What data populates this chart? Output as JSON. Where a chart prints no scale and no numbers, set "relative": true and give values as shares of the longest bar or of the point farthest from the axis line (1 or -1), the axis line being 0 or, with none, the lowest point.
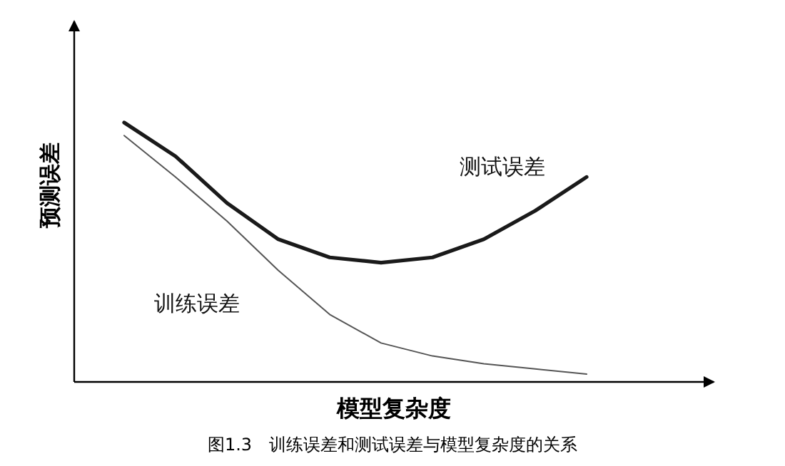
{
  "chart_data": {
    "type": "line",
    "relative": true,
    "xlabel": "模型复杂度",
    "ylabel": "预测误差",
    "annotations": [
      "图1.3　训练误差和测试误差与模型复杂度的关系"
    ],
    "categories": [
      null,
      null,
      null,
      null,
      null,
      null,
      null,
      null,
      null,
      null
    ],
    "series": [
      {
        "name": "测试误差",
        "color": "#1a1a1a",
        "values": [
          1.0,
          0.87,
          0.69,
          0.55,
          0.48,
          0.46,
          0.48,
          0.55,
          0.66,
          0.79
        ]
      },
      {
        "name": "训练误差",
        "color": "#555555",
        "values": [
          0.95,
          0.79,
          0.62,
          0.43,
          0.26,
          0.15,
          0.1,
          0.07,
          0.05,
          0.03
        ]
      }
    ],
    "marker": "none",
    "line_style": "solid"
  }
}
